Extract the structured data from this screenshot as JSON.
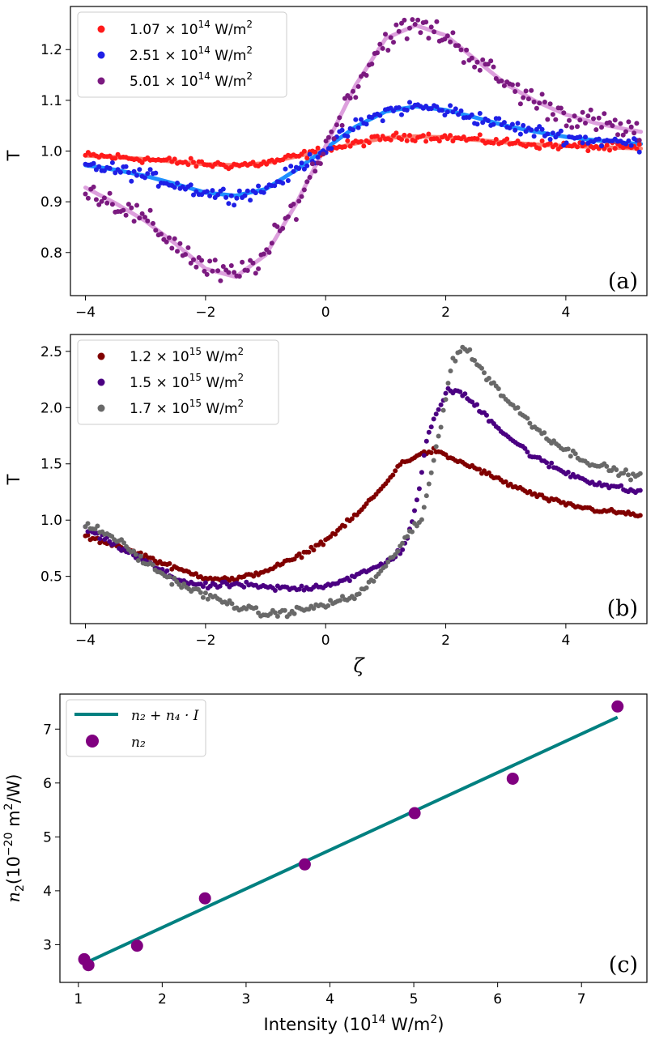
{
  "chart_data": [
    {
      "panel_label": "(a)",
      "type": "scatter",
      "ylabel": "T",
      "xlabel": "",
      "xlim": [
        -4.25,
        5.35
      ],
      "ylim": [
        0.715,
        1.285
      ],
      "xticks": [
        -4,
        -2,
        0,
        2,
        4
      ],
      "yticks": [
        0.8,
        0.9,
        1.0,
        1.1,
        1.2
      ],
      "ytick_labels": [
        "0.8",
        "0.9",
        "1.0",
        "1.1",
        "1.2"
      ],
      "legend": {
        "location": "top-left",
        "entries": [
          {
            "base": "1.07 × 10",
            "exp": "14",
            "unit": " W/m",
            "unit_exp": "2",
            "color": "#ff1a1a"
          },
          {
            "base": "2.51 × 10",
            "exp": "14",
            "unit": " W/m",
            "unit_exp": "2",
            "color": "#1f1fe6"
          },
          {
            "base": "5.01 × 10",
            "exp": "14",
            "unit": " W/m",
            "unit_exp": "2",
            "color": "#7b1a80"
          }
        ]
      },
      "series": [
        {
          "name": "1.07 × 10^14 W/m^2",
          "color": "#ff1a1a",
          "fit_color": "#fa8072",
          "amplitude": 0.028,
          "scatter": 0.006,
          "x": [
            -4.0,
            -3.5,
            -3.0,
            -2.5,
            -2.0,
            -1.5,
            -1.0,
            -0.5,
            0.0,
            0.5,
            1.0,
            1.5,
            2.0,
            2.5,
            3.0,
            3.5,
            4.0,
            4.5,
            5.0,
            5.25
          ],
          "y": [
            0.991,
            0.988,
            0.984,
            0.979,
            0.974,
            0.972,
            0.976,
            0.989,
            1.002,
            1.015,
            1.026,
            1.029,
            1.027,
            1.022,
            1.017,
            1.013,
            1.01,
            1.008,
            1.006,
            1.005
          ]
        },
        {
          "name": "2.51 × 10^14 W/m^2",
          "color": "#1f1fe6",
          "fit_color": "#1e90ff",
          "amplitude": 0.088,
          "scatter": 0.01,
          "x": [
            -4.0,
            -3.5,
            -3.0,
            -2.5,
            -2.0,
            -1.5,
            -1.0,
            -0.5,
            0.0,
            0.5,
            1.0,
            1.5,
            2.0,
            2.5,
            3.0,
            3.5,
            4.0,
            4.5,
            5.0,
            5.25
          ],
          "y": [
            0.972,
            0.963,
            0.951,
            0.935,
            0.918,
            0.912,
            0.925,
            0.962,
            1.005,
            1.048,
            1.078,
            1.088,
            1.081,
            1.066,
            1.05,
            1.038,
            1.028,
            1.021,
            1.016,
            1.014
          ]
        },
        {
          "name": "5.01 × 10^14 W/m^2",
          "color": "#7b1a80",
          "fit_color": "#dda0dd",
          "amplitude": 0.248,
          "scatter": 0.018,
          "x": [
            -4.0,
            -3.5,
            -3.0,
            -2.5,
            -2.0,
            -1.5,
            -1.0,
            -0.5,
            0.0,
            0.5,
            1.0,
            1.5,
            2.0,
            2.5,
            3.0,
            3.5,
            4.0,
            4.5,
            5.0,
            5.25
          ],
          "y": [
            0.928,
            0.897,
            0.862,
            0.817,
            0.768,
            0.752,
            0.795,
            0.894,
            1.01,
            1.13,
            1.222,
            1.248,
            1.228,
            1.18,
            1.132,
            1.098,
            1.072,
            1.055,
            1.043,
            1.038
          ]
        }
      ]
    },
    {
      "panel_label": "(b)",
      "type": "scatter",
      "ylabel": "T",
      "xlabel": "ζ",
      "xlim": [
        -4.25,
        5.35
      ],
      "ylim": [
        0.08,
        2.65
      ],
      "xticks": [
        -4,
        -2,
        0,
        2,
        4
      ],
      "yticks": [
        0.5,
        1.0,
        1.5,
        2.0,
        2.5
      ],
      "ytick_labels": [
        "0.5",
        "1.0",
        "1.5",
        "2.0",
        "2.5"
      ],
      "legend": {
        "location": "top-left",
        "entries": [
          {
            "base": "1.2 × 10",
            "exp": "15",
            "unit": " W/m",
            "unit_exp": "2",
            "color": "#800000"
          },
          {
            "base": "1.5 × 10",
            "exp": "15",
            "unit": " W/m",
            "unit_exp": "2",
            "color": "#4b0082"
          },
          {
            "base": "1.7 × 10",
            "exp": "15",
            "unit": " W/m",
            "unit_exp": "2",
            "color": "#696969"
          }
        ]
      },
      "series": [
        {
          "name": "1.2 × 10^15 W/m^2",
          "color": "#800000",
          "scatter": 0.015,
          "x": [
            -4.0,
            -3.5,
            -3.0,
            -2.5,
            -2.0,
            -1.5,
            -1.0,
            -0.5,
            0.0,
            0.5,
            1.0,
            1.2,
            1.5,
            1.8,
            2.0,
            2.5,
            3.0,
            3.5,
            4.0,
            4.5,
            5.0,
            5.25
          ],
          "y": [
            0.85,
            0.78,
            0.68,
            0.57,
            0.49,
            0.47,
            0.55,
            0.66,
            0.82,
            1.04,
            1.32,
            1.48,
            1.57,
            1.62,
            1.57,
            1.46,
            1.33,
            1.22,
            1.14,
            1.09,
            1.06,
            1.04
          ]
        },
        {
          "name": "1.5 × 10^15 W/m^2",
          "color": "#4b0082",
          "scatter": 0.02,
          "x": [
            -4.0,
            -3.5,
            -3.0,
            -2.5,
            -2.0,
            -1.5,
            -1.0,
            -0.5,
            0.0,
            0.5,
            1.0,
            1.3,
            1.5,
            1.7,
            2.0,
            2.2,
            2.5,
            3.0,
            3.5,
            4.0,
            4.5,
            5.0,
            5.25
          ],
          "y": [
            0.92,
            0.78,
            0.63,
            0.48,
            0.41,
            0.43,
            0.4,
            0.39,
            0.42,
            0.5,
            0.62,
            0.75,
            1.1,
            1.75,
            2.14,
            2.15,
            2.02,
            1.76,
            1.55,
            1.42,
            1.33,
            1.27,
            1.25
          ]
        },
        {
          "name": "1.7 × 10^15 W/m^2",
          "color": "#696969",
          "scatter": 0.025,
          "x": [
            -4.0,
            -3.5,
            -3.0,
            -2.5,
            -2.0,
            -1.5,
            -1.0,
            -0.5,
            0.0,
            0.5,
            1.0,
            1.3,
            1.6,
            1.9,
            2.1,
            2.3,
            2.5,
            3.0,
            3.5,
            4.0,
            4.5,
            5.0,
            5.25
          ],
          "y": [
            0.96,
            0.84,
            0.62,
            0.45,
            0.33,
            0.24,
            0.16,
            0.19,
            0.25,
            0.32,
            0.58,
            0.82,
            1.0,
            1.8,
            2.4,
            2.55,
            2.4,
            2.08,
            1.82,
            1.62,
            1.49,
            1.41,
            1.38
          ]
        }
      ]
    },
    {
      "panel_label": "(c)",
      "type": "scatter",
      "xlabel": {
        "text": "Intensity (10",
        "exp": "14",
        "unit": " W/m",
        "unit_exp": "2",
        "close": ")"
      },
      "ylabel": {
        "sym": "n",
        "sub": "2",
        "text": "(10",
        "exp": "−20",
        "unit": " m",
        "unit_exp": "2",
        "close": "/W)"
      },
      "xlim": [
        0.78,
        7.78
      ],
      "ylim": [
        2.3,
        7.65
      ],
      "xticks": [
        1,
        2,
        3,
        4,
        5,
        6,
        7
      ],
      "yticks": [
        3,
        4,
        5,
        6,
        7
      ],
      "legend": {
        "location": "top-left",
        "entries": [
          {
            "type": "line",
            "label": "n₂ + n₄ · I",
            "color": "#008080"
          },
          {
            "type": "marker",
            "label": "n₂",
            "color": "#800080"
          }
        ]
      },
      "fit": {
        "label": "n₂ + n₄ · I",
        "color": "#008080",
        "x": [
          1.07,
          7.43
        ],
        "y": [
          2.65,
          7.22
        ]
      },
      "points": {
        "label": "n₂",
        "color": "#800080",
        "x": [
          1.07,
          1.12,
          1.7,
          2.51,
          3.7,
          5.01,
          6.18,
          7.43
        ],
        "y": [
          2.73,
          2.62,
          2.98,
          3.86,
          4.49,
          5.44,
          6.08,
          7.42
        ]
      }
    }
  ]
}
